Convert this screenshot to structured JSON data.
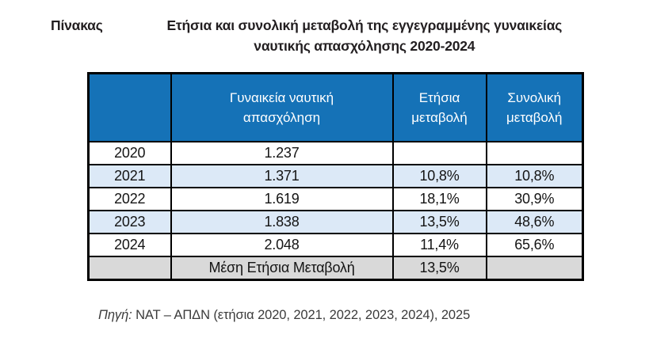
{
  "title": {
    "label": "Πίνακας",
    "line1": "Ετήσια και συνολική μεταβολή της εγγεγραμμένης γυναικείας",
    "line2": "ναυτικής απασχόλησης 2020-2024"
  },
  "table": {
    "headers": [
      {
        "line1": "",
        "line2": ""
      },
      {
        "line1": "Γυναικεία ναυτική",
        "line2": "απασχόληση"
      },
      {
        "line1": "Ετήσια",
        "line2": "μεταβολή"
      },
      {
        "line1": "Συνολική",
        "line2": "μεταβολή"
      }
    ],
    "rows": [
      {
        "year": "2020",
        "employment": "1.237",
        "annual": "",
        "total": ""
      },
      {
        "year": "2021",
        "employment": "1.371",
        "annual": "10,8%",
        "total": "10,8%"
      },
      {
        "year": "2022",
        "employment": "1.619",
        "annual": "18,1%",
        "total": "30,9%"
      },
      {
        "year": "2023",
        "employment": "1.838",
        "annual": "13,5%",
        "total": "48,6%"
      },
      {
        "year": "2024",
        "employment": "2.048",
        "annual": "11,4%",
        "total": "65,6%"
      }
    ],
    "summary": {
      "year": "",
      "label": "Μέση Ετήσια Μεταβολή",
      "annual": "13,5%",
      "total": ""
    }
  },
  "footer": {
    "source_label": "Πηγή:",
    "source_text": " ΝΑΤ – ΑΠΔΝ (ετήσια 2020, 2021, 2022, 2023, 2024), 2025"
  },
  "colors": {
    "header_bg": "#1572b7",
    "band_bg": "#dce9f7",
    "summary_bg": "#d9d9d9",
    "border": "#000000"
  }
}
